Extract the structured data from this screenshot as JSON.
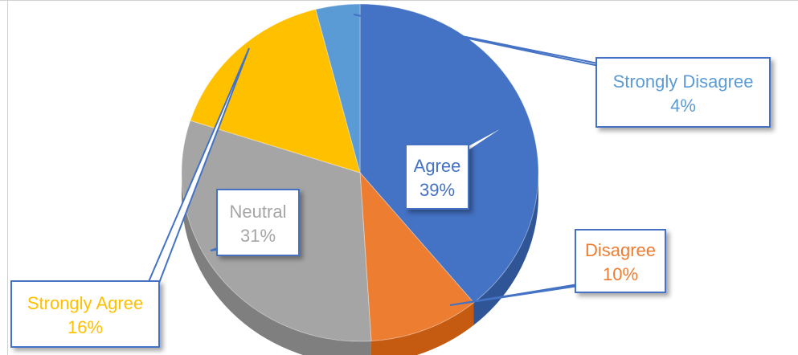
{
  "chart_data": {
    "type": "pie",
    "title": "",
    "legend": "none",
    "slices": [
      {
        "name": "Agree",
        "value": 39,
        "label": "39%",
        "color": "#4472C4",
        "side": "#2F5597",
        "labelColor": "#4472C4"
      },
      {
        "name": "Disagree",
        "value": 10,
        "label": "10%",
        "color": "#ED7D31",
        "side": "#C55A11",
        "labelColor": "#ED7D31"
      },
      {
        "name": "Neutral",
        "value": 31,
        "label": "31%",
        "color": "#A5A5A5",
        "side": "#7F7F7F",
        "labelColor": "#A5A5A5"
      },
      {
        "name": "Strongly Agree",
        "value": 16,
        "label": "16%",
        "color": "#FFC000",
        "side": "#BF9000",
        "labelColor": "#FFC000"
      },
      {
        "name": "Strongly Disagree",
        "value": 4,
        "label": "4%",
        "color": "#5B9BD5",
        "side": "#2E75B6",
        "labelColor": "#5B9BD5"
      }
    ]
  }
}
